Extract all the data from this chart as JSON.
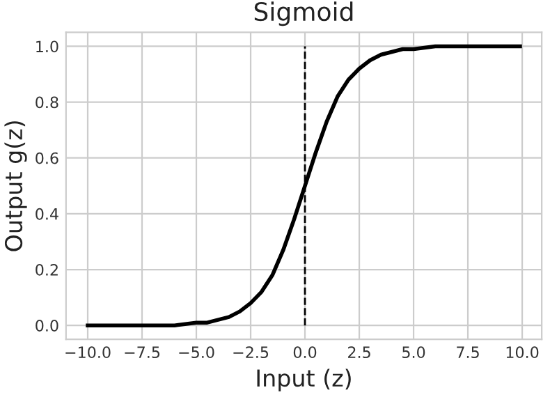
{
  "chart_data": {
    "type": "line",
    "title": "Sigmoid",
    "xlabel": "Input (z)",
    "ylabel": "Output g(z)",
    "x": [
      -10,
      -8,
      -7,
      -6,
      -5,
      -4.5,
      -4,
      -3.5,
      -3,
      -2.5,
      -2,
      -1.5,
      -1,
      -0.5,
      0,
      0.5,
      1,
      1.5,
      2,
      2.5,
      3,
      3.5,
      4,
      4.5,
      5,
      6,
      7,
      8,
      9.9
    ],
    "series": [
      {
        "color": "#000000",
        "values": [
          0.0,
          0.0,
          0.0,
          0.0,
          0.01,
          0.01,
          0.02,
          0.03,
          0.05,
          0.08,
          0.12,
          0.18,
          0.27,
          0.38,
          0.5,
          0.62,
          0.73,
          0.82,
          0.88,
          0.92,
          0.95,
          0.97,
          0.98,
          0.99,
          0.99,
          1.0,
          1.0,
          1.0,
          1.0
        ]
      }
    ],
    "xlim": [
      -11,
      10.9
    ],
    "ylim": [
      -0.05,
      1.05
    ],
    "xticks": [
      {
        "value": -10,
        "label": "−10.0"
      },
      {
        "value": -7.5,
        "label": "−7.5"
      },
      {
        "value": -5,
        "label": "−5.0"
      },
      {
        "value": -2.5,
        "label": "−2.5"
      },
      {
        "value": 0,
        "label": "0.0"
      },
      {
        "value": 2.5,
        "label": "2.5"
      },
      {
        "value": 5,
        "label": "5.0"
      },
      {
        "value": 7.5,
        "label": "7.5"
      },
      {
        "value": 10,
        "label": "10.0"
      }
    ],
    "yticks": [
      {
        "value": 0,
        "label": "0.0"
      },
      {
        "value": 0.2,
        "label": "0.2"
      },
      {
        "value": 0.4,
        "label": "0.4"
      },
      {
        "value": 0.6,
        "label": "0.6"
      },
      {
        "value": 0.8,
        "label": "0.8"
      },
      {
        "value": 1,
        "label": "1.0"
      }
    ],
    "ref_lines": [
      {
        "axis": "x",
        "value": 0,
        "color": "#000000",
        "line_style": "dashed"
      }
    ],
    "grid": true,
    "marker": "none",
    "line_style": "solid"
  }
}
